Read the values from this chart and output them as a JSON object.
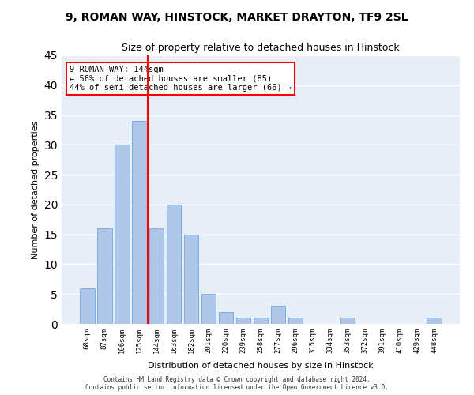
{
  "title1": "9, ROMAN WAY, HINSTOCK, MARKET DRAYTON, TF9 2SL",
  "title2": "Size of property relative to detached houses in Hinstock",
  "xlabel": "Distribution of detached houses by size in Hinstock",
  "ylabel": "Number of detached properties",
  "categories": [
    "68sqm",
    "87sqm",
    "106sqm",
    "125sqm",
    "144sqm",
    "163sqm",
    "182sqm",
    "201sqm",
    "220sqm",
    "239sqm",
    "258sqm",
    "277sqm",
    "296sqm",
    "315sqm",
    "334sqm",
    "353sqm",
    "372sqm",
    "391sqm",
    "410sqm",
    "429sqm",
    "448sqm"
  ],
  "values": [
    6,
    16,
    30,
    34,
    16,
    20,
    15,
    5,
    2,
    1,
    1,
    3,
    1,
    0,
    0,
    1,
    0,
    0,
    0,
    0,
    1
  ],
  "bar_color": "#aec6e8",
  "bar_edge_color": "#5a9fd4",
  "red_line_x": 4,
  "annotation_text": "9 ROMAN WAY: 144sqm\n← 56% of detached houses are smaller (85)\n44% of semi-detached houses are larger (66) →",
  "annotation_box_color": "white",
  "annotation_box_edge": "red",
  "ylim": [
    0,
    45
  ],
  "yticks": [
    0,
    5,
    10,
    15,
    20,
    25,
    30,
    35,
    40,
    45
  ],
  "background_color": "#e8eef8",
  "grid_color": "white",
  "footer_line1": "Contains HM Land Registry data © Crown copyright and database right 2024.",
  "footer_line2": "Contains public sector information licensed under the Open Government Licence v3.0."
}
